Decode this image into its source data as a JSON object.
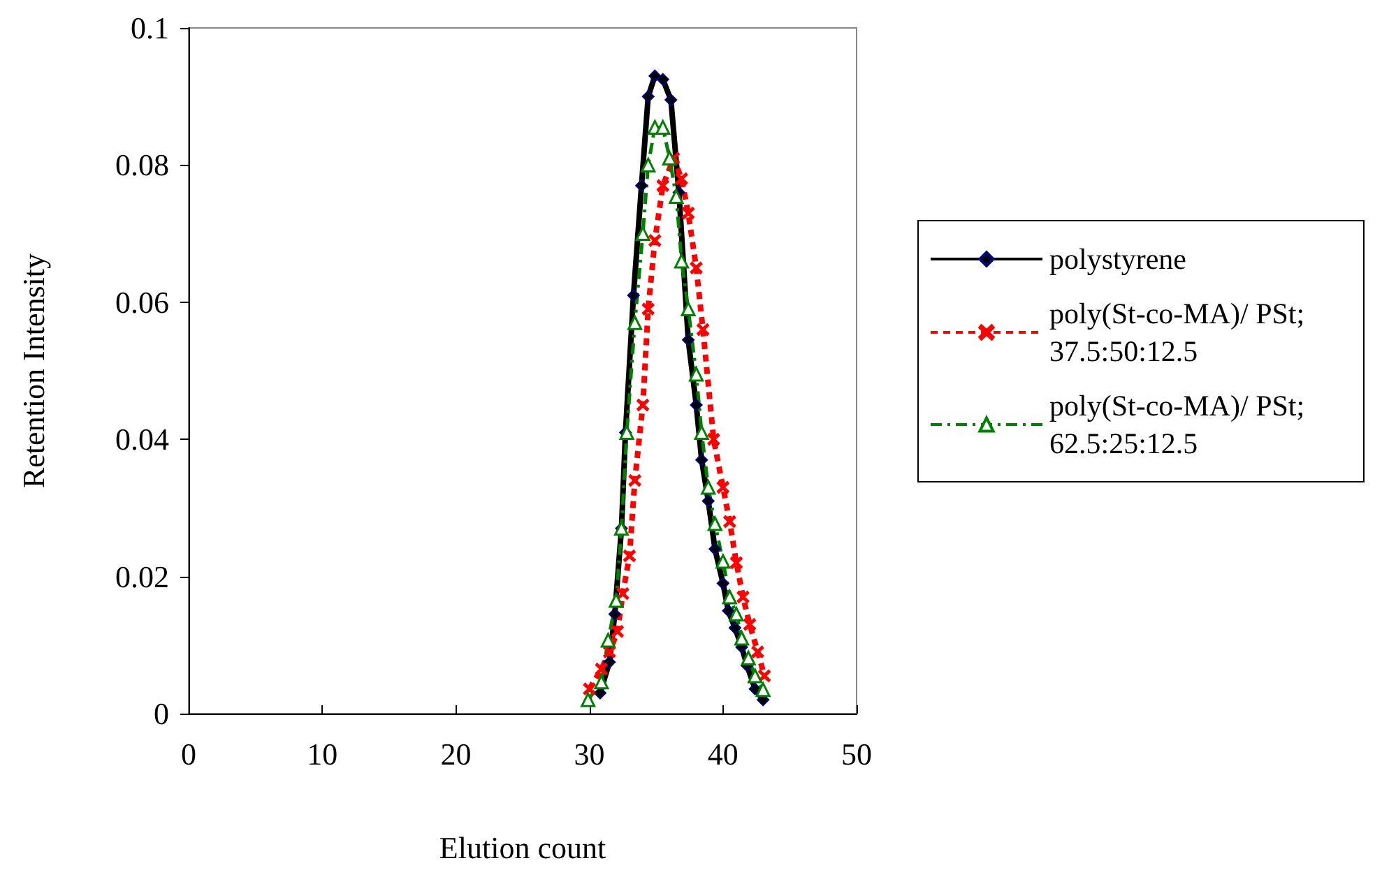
{
  "chart_data": {
    "type": "line",
    "xlabel": "Elution count",
    "ylabel": "Retention Intensity",
    "xlim": [
      0,
      50
    ],
    "xticks": [
      0,
      10,
      20,
      30,
      40,
      50
    ],
    "ylim": [
      0,
      0.1
    ],
    "yticks": [
      0,
      0.02,
      0.04,
      0.06,
      0.08,
      0.1
    ],
    "grid": false,
    "legend": "right",
    "series": [
      {
        "name": "polystyrene",
        "color": "#000000",
        "marker": "diamond",
        "line_style": "solid",
        "x": [
          30.8,
          31.5,
          31.9,
          32.4,
          32.7,
          33.3,
          33.9,
          34.4,
          34.9,
          35.5,
          36.1,
          36.7,
          37.4,
          38.0,
          38.4,
          38.9,
          39.4,
          40.0,
          40.4,
          40.9,
          41.4,
          41.8,
          42.4,
          43.0
        ],
        "values": [
          0.003,
          0.0075,
          0.0145,
          0.027,
          0.041,
          0.061,
          0.077,
          0.09,
          0.093,
          0.0925,
          0.0895,
          0.076,
          0.0545,
          0.045,
          0.037,
          0.031,
          0.024,
          0.019,
          0.015,
          0.0125,
          0.0097,
          0.007,
          0.0036,
          0.002
        ]
      },
      {
        "name": "poly(St-co-MA)/ PSt; 37.5:50:12.5",
        "color": "#ff0000",
        "marker": "cross",
        "line_style": "dotted",
        "x": [
          30.0,
          30.9,
          31.5,
          32.1,
          32.5,
          33.0,
          33.4,
          34.0,
          34.4,
          34.9,
          35.5,
          36.3,
          36.9,
          37.4,
          38.0,
          38.5,
          39.3,
          40.0,
          40.5,
          41.0,
          41.5,
          42.0,
          42.6,
          43.1
        ],
        "values": [
          0.0036,
          0.0065,
          0.009,
          0.012,
          0.0175,
          0.023,
          0.034,
          0.045,
          0.059,
          0.069,
          0.077,
          0.081,
          0.078,
          0.073,
          0.065,
          0.056,
          0.04,
          0.033,
          0.028,
          0.022,
          0.017,
          0.013,
          0.009,
          0.0055
        ]
      },
      {
        "name": "poly(St-co-MA)/ PSt; 62.5:25:12.5",
        "color": "#008000",
        "marker": "triangle",
        "line_style": "dashed",
        "x": [
          29.9,
          30.9,
          31.4,
          32.0,
          32.4,
          32.8,
          33.4,
          34.0,
          34.4,
          34.9,
          35.5,
          36.0,
          36.5,
          36.9,
          37.4,
          38.0,
          38.4,
          38.9,
          39.4,
          40.0,
          40.5,
          41.0,
          41.4,
          41.9,
          42.4,
          43.0
        ],
        "values": [
          0.002,
          0.0046,
          0.0107,
          0.0165,
          0.027,
          0.041,
          0.057,
          0.07,
          0.08,
          0.0855,
          0.0855,
          0.081,
          0.0754,
          0.066,
          0.059,
          0.0495,
          0.041,
          0.033,
          0.0277,
          0.0222,
          0.017,
          0.0145,
          0.011,
          0.0081,
          0.0055,
          0.0035
        ]
      }
    ]
  }
}
